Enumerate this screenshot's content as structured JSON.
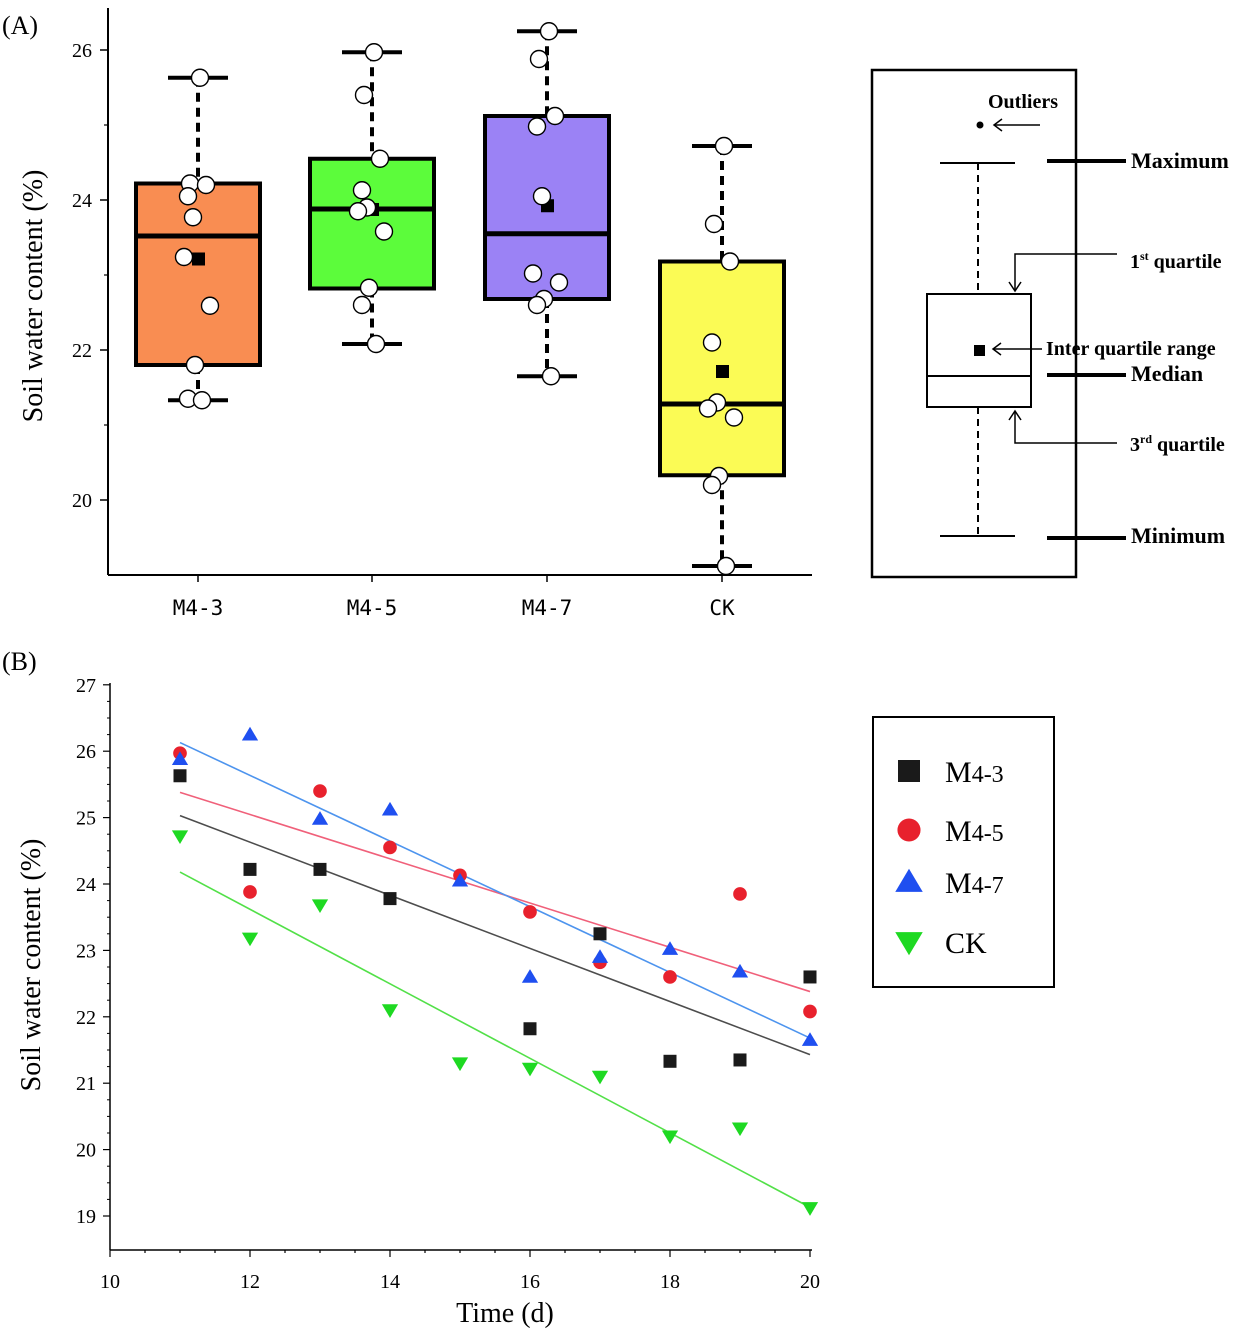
{
  "panel_a_label": "(A)",
  "panel_b_label": "(B)",
  "chart_data": [
    {
      "type": "box",
      "panel": "A",
      "ylabel": "Soil water content (%)",
      "ylim": [
        19.0,
        26.7
      ],
      "yticks": [
        20,
        22,
        24,
        26
      ],
      "categories": [
        "M4-3",
        "M4-5",
        "M4-7",
        "CK"
      ],
      "boxes": [
        {
          "name": "M4-3",
          "color": "#f98d52",
          "min": 21.33,
          "q1": 21.8,
          "median": 23.52,
          "q3": 24.22,
          "max": 25.63,
          "mean": 23.22,
          "points": [
            25.63,
            24.22,
            24.2,
            24.05,
            23.77,
            23.24,
            22.59,
            21.8,
            21.35,
            21.33
          ]
        },
        {
          "name": "M4-5",
          "color": "#5cfc3b",
          "min": 22.08,
          "q1": 22.82,
          "median": 23.88,
          "q3": 24.55,
          "max": 25.97,
          "mean": 23.88,
          "points": [
            25.97,
            25.4,
            24.55,
            24.13,
            23.9,
            23.85,
            23.58,
            22.83,
            22.6,
            22.08
          ]
        },
        {
          "name": "M4-7",
          "color": "#9b82f5",
          "min": 21.65,
          "q1": 22.68,
          "median": 23.55,
          "q3": 25.12,
          "max": 26.25,
          "mean": 23.93,
          "points": [
            26.25,
            25.88,
            25.12,
            24.98,
            24.05,
            23.02,
            22.9,
            22.68,
            22.6,
            21.65
          ]
        },
        {
          "name": "CK",
          "color": "#fbfb55",
          "min": 19.12,
          "q1": 20.33,
          "median": 21.28,
          "q3": 23.18,
          "max": 24.72,
          "mean": 21.72,
          "points": [
            24.72,
            23.68,
            23.18,
            22.1,
            21.3,
            21.22,
            21.1,
            20.32,
            20.2,
            19.12
          ]
        }
      ]
    },
    {
      "type": "legend-diagram",
      "panel": "A-legend",
      "labels": {
        "outliers": "Outliers",
        "maximum": "Maximum",
        "q1_text": "1",
        "q1_sup": "st",
        "q1_rest": " quartile",
        "iqr": "Inter quartile range",
        "median": "Median",
        "q3_text": "3",
        "q3_sup": "rd",
        "q3_rest": " quartile",
        "minimum": "Minimum"
      }
    },
    {
      "type": "scatter",
      "panel": "B",
      "xlabel": "Time (d)",
      "ylabel": "Soil water content (%)",
      "xlim": [
        10,
        20
      ],
      "ylim": [
        18.6,
        27
      ],
      "xticks": [
        10,
        12,
        14,
        16,
        18,
        20
      ],
      "yticks": [
        19,
        20,
        21,
        22,
        23,
        24,
        25,
        26,
        27
      ],
      "series": [
        {
          "name": "M4-3",
          "legend_main": "M",
          "legend_sub": "4-3",
          "marker": "square",
          "color": "#1a1a1a",
          "line_color": "#4d4d4d",
          "x": [
            11,
            12,
            13,
            14,
            16,
            17,
            18,
            19,
            20
          ],
          "y": [
            25.63,
            24.22,
            24.22,
            23.78,
            21.82,
            23.25,
            21.33,
            21.35,
            22.6
          ],
          "fit": {
            "x": [
              11,
              20
            ],
            "y": [
              25.03,
              21.43
            ]
          }
        },
        {
          "name": "M4-5",
          "legend_main": "M",
          "legend_sub": "4-5",
          "marker": "circle",
          "color": "#e8212d",
          "line_color": "#f0607a",
          "x": [
            11,
            12,
            13,
            14,
            15,
            16,
            17,
            18,
            19,
            20
          ],
          "y": [
            25.97,
            23.88,
            25.4,
            24.55,
            24.13,
            23.58,
            22.82,
            22.6,
            23.85,
            22.08
          ],
          "fit": {
            "x": [
              11,
              20
            ],
            "y": [
              25.38,
              22.38
            ]
          }
        },
        {
          "name": "M4-7",
          "legend_main": "M",
          "legend_sub": "4-7",
          "marker": "triangle-up",
          "color": "#1f4ff0",
          "line_color": "#4d94ee",
          "x": [
            11,
            12,
            13,
            14,
            15,
            16,
            17,
            18,
            19,
            20
          ],
          "y": [
            25.88,
            26.25,
            24.98,
            25.12,
            24.05,
            22.6,
            22.9,
            23.02,
            22.68,
            21.65
          ],
          "fit": {
            "x": [
              11,
              20
            ],
            "y": [
              26.13,
              21.68
            ]
          }
        },
        {
          "name": "CK",
          "legend_main": "CK",
          "legend_sub": "",
          "marker": "triangle-down",
          "color": "#1ed922",
          "line_color": "#52e048",
          "x": [
            11,
            12,
            13,
            14,
            15,
            16,
            17,
            18,
            19,
            20
          ],
          "y": [
            24.72,
            23.18,
            23.68,
            22.1,
            21.3,
            21.22,
            21.1,
            20.2,
            20.32,
            19.12
          ],
          "fit": {
            "x": [
              11,
              20
            ],
            "y": [
              24.18,
              19.13
            ]
          }
        }
      ]
    }
  ]
}
